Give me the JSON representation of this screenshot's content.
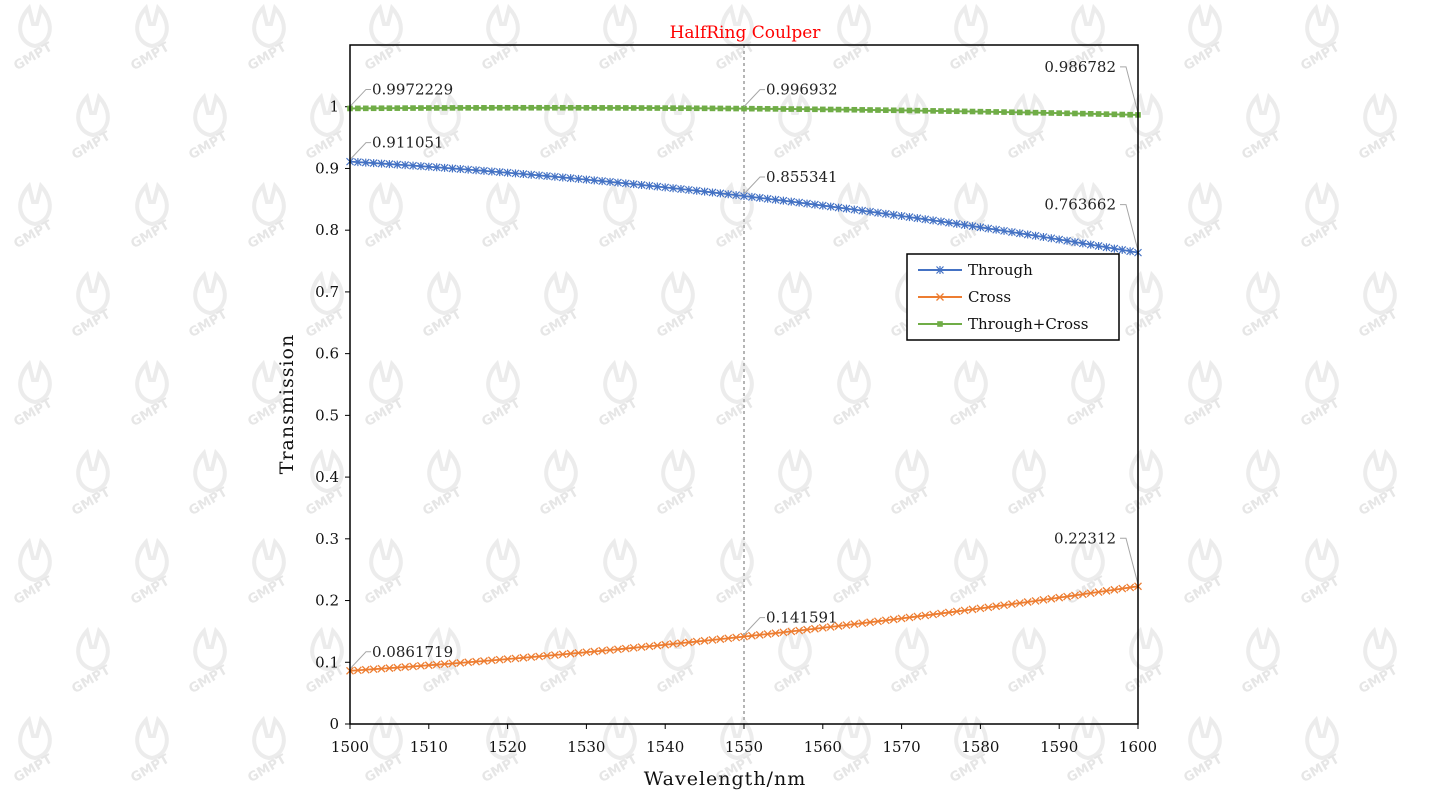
{
  "watermark": {
    "text": "GMPT"
  },
  "chart_data": {
    "type": "line",
    "title": "HalfRing Coulper",
    "xlabel": "Wavelength/nm",
    "ylabel": "Transmission",
    "xlim": [
      1500,
      1600
    ],
    "ylim": [
      0,
      1.1
    ],
    "x_ticks": [
      "1500",
      "1510",
      "1520",
      "1530",
      "1540",
      "1550",
      "1560",
      "1570",
      "1580",
      "1590",
      "1600"
    ],
    "y_ticks": [
      "0",
      "0.1",
      "0.2",
      "0.3",
      "0.4",
      "0.5",
      "0.6",
      "0.7",
      "0.8",
      "0.9",
      "1"
    ],
    "grid": false,
    "legend_position": "right",
    "reference_line_x": 1550,
    "series": [
      {
        "name": "Through",
        "color": "#4472C4",
        "marker": "asterisk",
        "x": [
          1500,
          1550,
          1600
        ],
        "values": [
          0.911051,
          0.855341,
          0.763662
        ],
        "labels": [
          "0.911051",
          "0.855341",
          "0.763662"
        ]
      },
      {
        "name": "Cross",
        "color": "#ED7D31",
        "marker": "x",
        "x": [
          1500,
          1550,
          1600
        ],
        "values": [
          0.0861719,
          0.141591,
          0.22312
        ],
        "labels": [
          "0.0861719",
          "0.141591",
          "0.22312"
        ]
      },
      {
        "name": "Through+Cross",
        "color": "#70AD47",
        "marker": "square",
        "x": [
          1500,
          1550,
          1600
        ],
        "values": [
          0.9972229,
          0.996932,
          0.986782
        ],
        "labels": [
          "0.9972229",
          "0.996932",
          "0.986782"
        ]
      }
    ]
  }
}
